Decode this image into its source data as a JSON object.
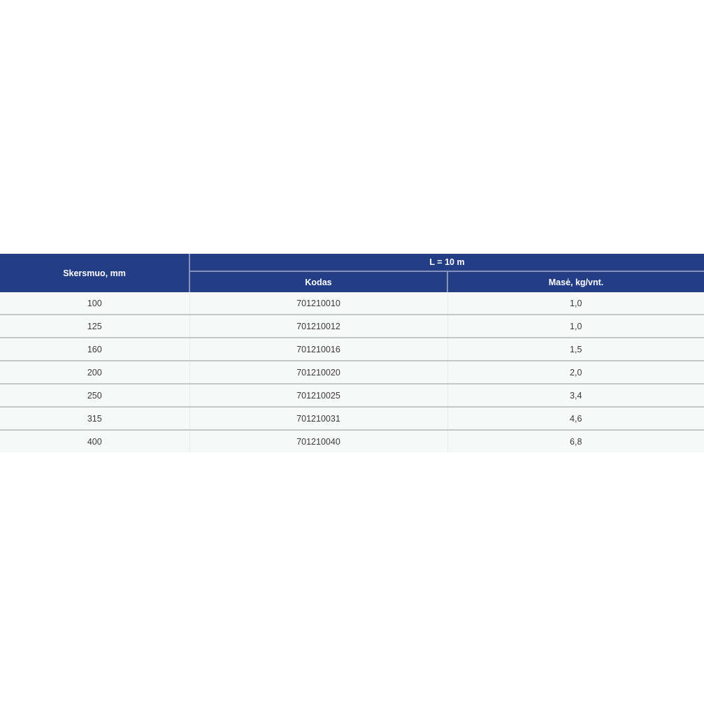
{
  "table": {
    "header": {
      "diameter_label": "Skersmuo, mm",
      "span_label": "L = 10 m",
      "code_label": "Kodas",
      "mass_label": "Masė, kg/vnt."
    },
    "rows": [
      {
        "diameter": "100",
        "code": "701210010",
        "mass": "1,0"
      },
      {
        "diameter": "125",
        "code": "701210012",
        "mass": "1,0"
      },
      {
        "diameter": "160",
        "code": "701210016",
        "mass": "1,5"
      },
      {
        "diameter": "200",
        "code": "701210020",
        "mass": "2,0"
      },
      {
        "diameter": "250",
        "code": "701210025",
        "mass": "3,4"
      },
      {
        "diameter": "315",
        "code": "701210031",
        "mass": "4,6"
      },
      {
        "diameter": "400",
        "code": "701210040",
        "mass": "6,8"
      }
    ],
    "colors": {
      "header_bg": "#243E85",
      "header_text": "#FFFFFF",
      "header_divider": "#8592BD",
      "row_bg": "#F7F8F8",
      "row_divider": "#C5C7C7",
      "body_text": "#3A3A3A"
    }
  }
}
